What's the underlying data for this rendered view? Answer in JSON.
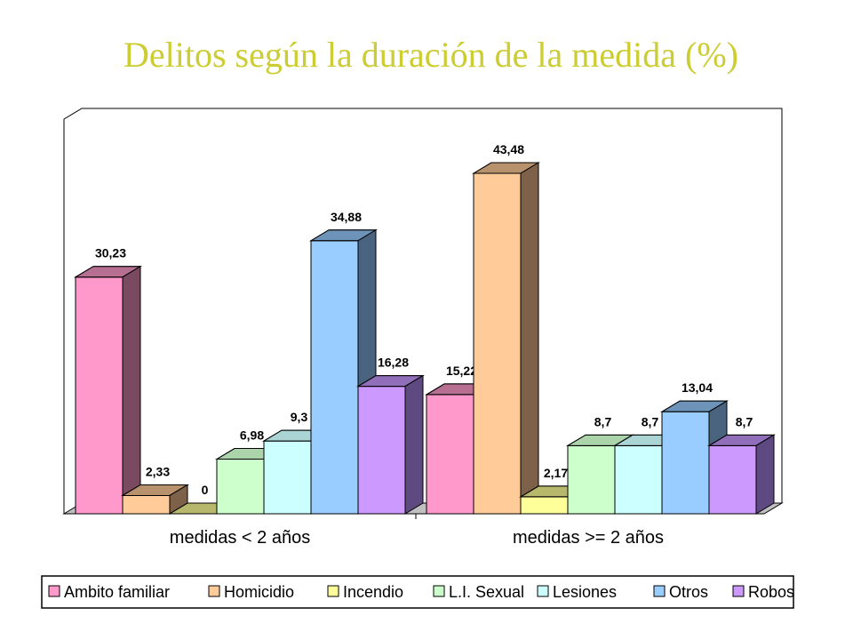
{
  "title": "Delitos según la duración de la medida (%)",
  "chart_data": {
    "type": "bar",
    "title": "Delitos según la duración de la medida (%)",
    "categories": [
      "medidas < 2 años",
      "medidas >= 2 años"
    ],
    "series": [
      {
        "name": "Ambito familiar",
        "values": [
          30.23,
          15.22
        ],
        "labels": [
          "30,23",
          "15,22"
        ],
        "color": "#ff99cc",
        "side": "#7a4a60"
      },
      {
        "name": "Homicidio",
        "values": [
          2.33,
          43.48
        ],
        "labels": [
          "2,33",
          "43,48"
        ],
        "color": "#ffcc99",
        "side": "#7d6148"
      },
      {
        "name": "Incendio",
        "values": [
          0,
          2.17
        ],
        "labels": [
          "0",
          "2,17"
        ],
        "color": "#ffff99",
        "side": "#7d7d48"
      },
      {
        "name": "L.I. Sexual",
        "values": [
          6.98,
          8.7
        ],
        "labels": [
          "6,98",
          "8,7"
        ],
        "color": "#ccffcc",
        "side": "#8fb08f"
      },
      {
        "name": "Lesiones",
        "values": [
          9.3,
          8.7
        ],
        "labels": [
          "9,3",
          "8,7"
        ],
        "color": "#ccffff",
        "side": "#8fb0b0"
      },
      {
        "name": "Otros",
        "values": [
          34.88,
          13.04
        ],
        "labels": [
          "34,88",
          "13,04"
        ],
        "color": "#99ccff",
        "side": "#4a6480"
      },
      {
        "name": "Robos",
        "values": [
          16.28,
          8.7
        ],
        "labels": [
          "16,28",
          "8,7"
        ],
        "color": "#cc99ff",
        "side": "#5e4a80"
      }
    ],
    "ylim": [
      0,
      50
    ],
    "grid": false,
    "legend": "bottom"
  }
}
